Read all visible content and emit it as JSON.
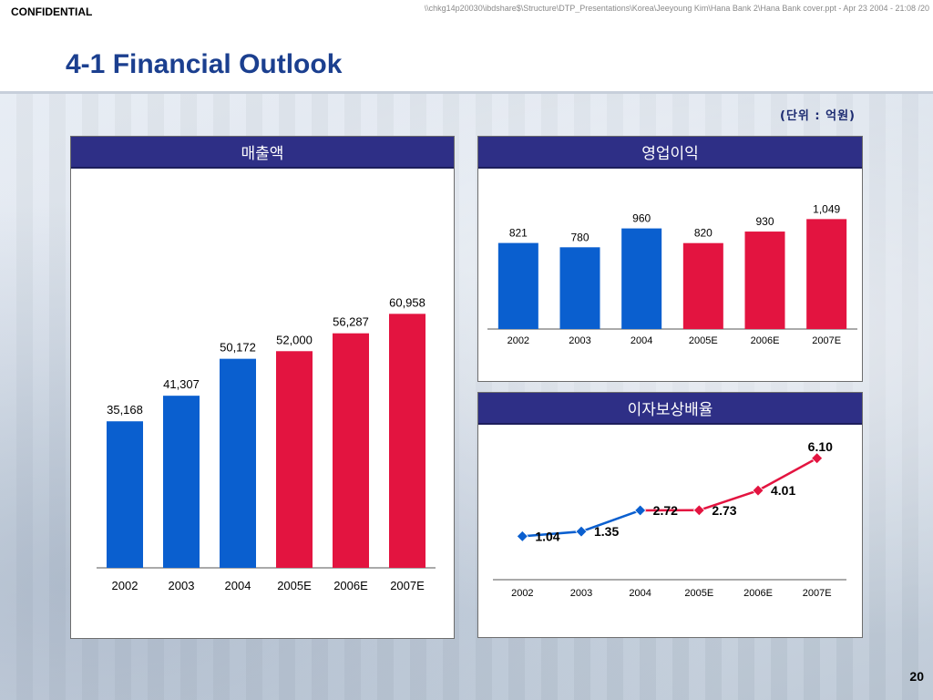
{
  "header": {
    "confidential": "CONFIDENTIAL",
    "file_path": "\\\\chkg14p20030\\ibdshare$\\Structure\\DTP_Presentations\\Korea\\Jeeyoung Kim\\Hana Bank 2\\Hana Bank cover.ppt - Apr 23 2004 - 21:08 /20",
    "title": "4-1 Financial Outlook"
  },
  "unit_note": "(단위 : 억원)",
  "page_number": "20",
  "colors": {
    "actual": "#0a5fcf",
    "estimate": "#e31440",
    "header": "#2e2f86"
  },
  "chart_data": [
    {
      "type": "bar",
      "title": "매출액",
      "categories": [
        "2002",
        "2003",
        "2004",
        "2005E",
        "2006E",
        "2007E"
      ],
      "values": [
        35168,
        41307,
        50172,
        52000,
        56287,
        60958
      ],
      "value_labels": [
        "35,168",
        "41,307",
        "50,172",
        "52,000",
        "56,287",
        "60,958"
      ],
      "colors": [
        "#0a5fcf",
        "#0a5fcf",
        "#0a5fcf",
        "#e31440",
        "#e31440",
        "#e31440"
      ],
      "ylim": [
        0,
        70000
      ],
      "grid": false,
      "legend": "none"
    },
    {
      "type": "bar",
      "title": "영업이익",
      "categories": [
        "2002",
        "2003",
        "2004",
        "2005E",
        "2006E",
        "2007E"
      ],
      "values": [
        821,
        780,
        960,
        820,
        930,
        1049
      ],
      "value_labels": [
        "821",
        "780",
        "960",
        "820",
        "930",
        "1,049"
      ],
      "colors": [
        "#0a5fcf",
        "#0a5fcf",
        "#0a5fcf",
        "#e31440",
        "#e31440",
        "#e31440"
      ],
      "ylim": [
        0,
        1200
      ],
      "grid": false,
      "legend": "none"
    },
    {
      "type": "line",
      "title": "이자보상배율",
      "categories": [
        "2002",
        "2003",
        "2004",
        "2005E",
        "2006E",
        "2007E"
      ],
      "values": [
        1.04,
        1.35,
        2.72,
        2.73,
        4.01,
        6.1
      ],
      "value_labels": [
        "1.04",
        "1.35",
        "2.72",
        "2.73",
        "4.01",
        "6.10"
      ],
      "segment_colors": [
        "#0a5fcf",
        "#0a5fcf",
        "#e31440",
        "#e31440",
        "#e31440"
      ],
      "marker_colors": [
        "#0a5fcf",
        "#0a5fcf",
        "#0a5fcf",
        "#e31440",
        "#e31440",
        "#e31440"
      ],
      "ylim": [
        0,
        6.5
      ],
      "grid": false,
      "legend": "none"
    }
  ]
}
